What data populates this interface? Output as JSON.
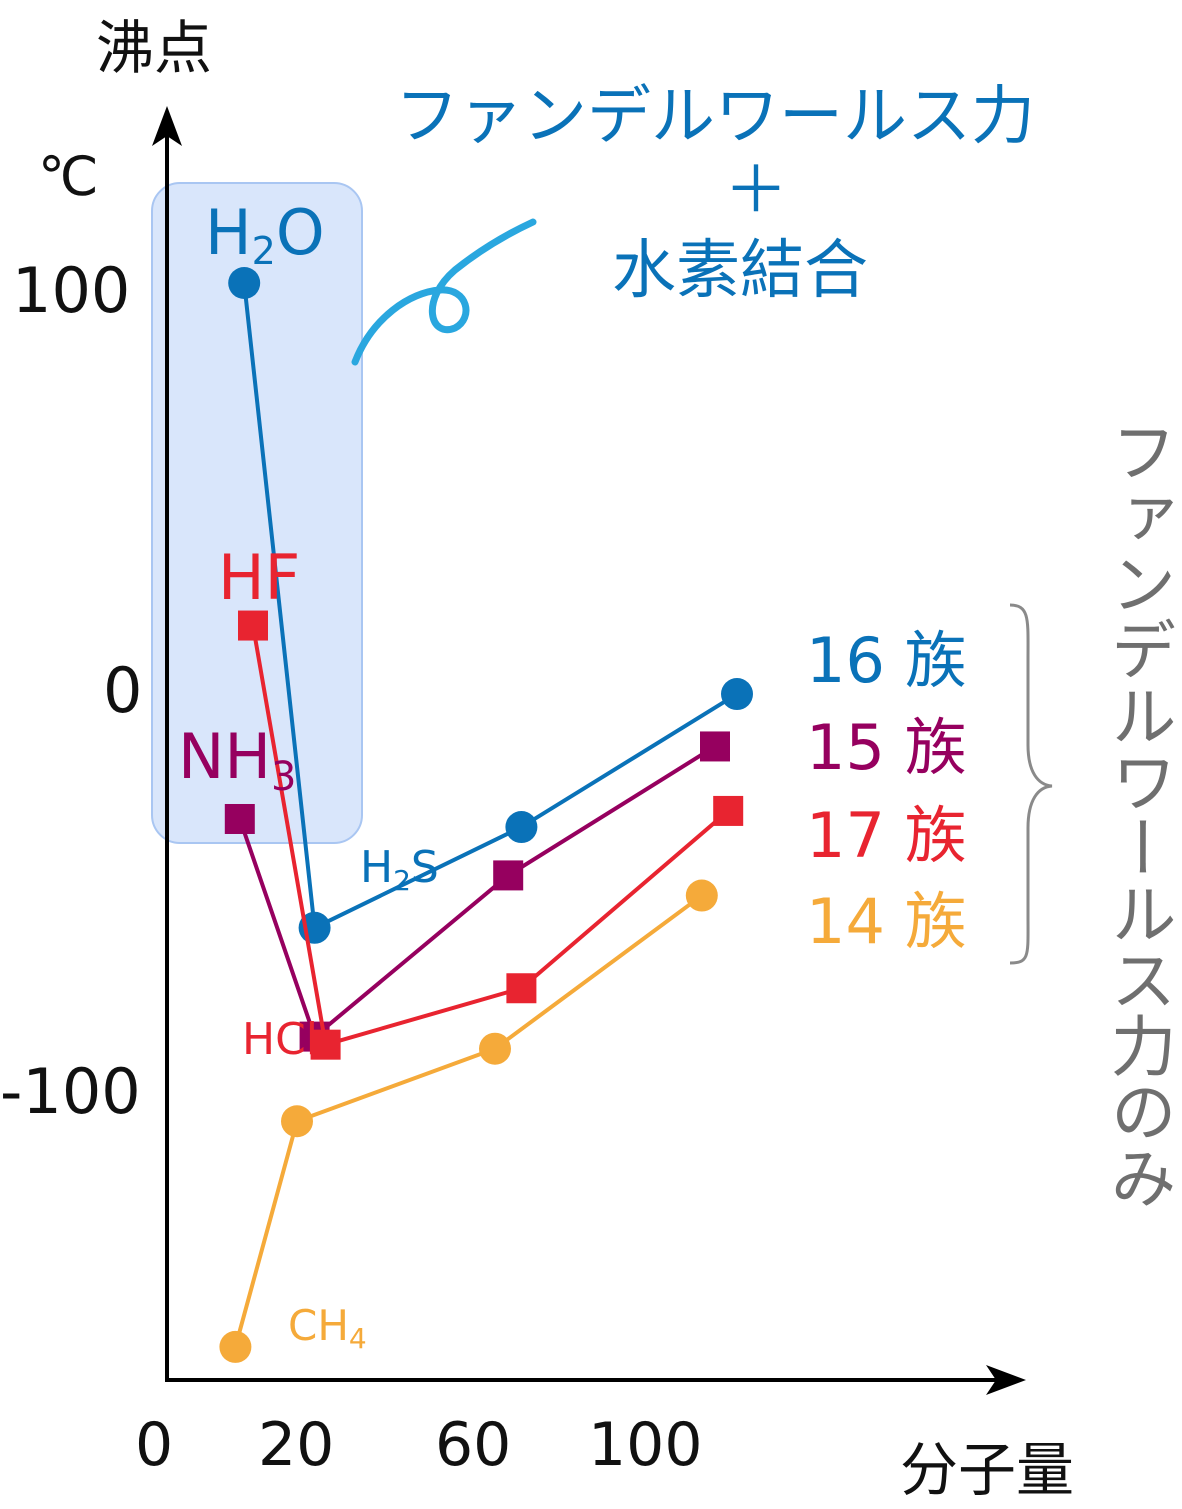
{
  "chart_data": {
    "type": "line",
    "title": "",
    "ylabel": "沸点",
    "yunit": "℃",
    "xlabel": "分子量",
    "xlim": [
      0,
      160
    ],
    "ylim": [
      -180,
      150
    ],
    "x_ticks": [
      "0",
      "20",
      "60",
      "100"
    ],
    "y_ticks": [
      "100",
      "0",
      "-100"
    ],
    "series": [
      {
        "name": "16 族",
        "color": "#0a72b8",
        "marker": "circle",
        "points": [
          {
            "x": 18,
            "y": 100,
            "label": "H2O"
          },
          {
            "x": 34,
            "y": -60,
            "label": "H2S"
          },
          {
            "x": 81,
            "y": -35,
            "label": ""
          },
          {
            "x": 130,
            "y": -2,
            "label": ""
          }
        ]
      },
      {
        "name": "15 族",
        "color": "#96005f",
        "marker": "square",
        "points": [
          {
            "x": 17,
            "y": -33,
            "label": "NH3"
          },
          {
            "x": 34,
            "y": -87,
            "label": ""
          },
          {
            "x": 78,
            "y": -47,
            "label": ""
          },
          {
            "x": 125,
            "y": -15,
            "label": ""
          }
        ]
      },
      {
        "name": "17 族",
        "color": "#e82430",
        "marker": "square",
        "points": [
          {
            "x": 20,
            "y": 15,
            "label": "HF"
          },
          {
            "x": 36.5,
            "y": -89,
            "label": "HCl"
          },
          {
            "x": 81,
            "y": -75,
            "label": ""
          },
          {
            "x": 128,
            "y": -31,
            "label": ""
          }
        ]
      },
      {
        "name": "14 族",
        "color": "#f5aa3a",
        "marker": "circle",
        "points": [
          {
            "x": 16,
            "y": -164,
            "label": "CH4"
          },
          {
            "x": 30,
            "y": -108,
            "label": ""
          },
          {
            "x": 75,
            "y": -90,
            "label": ""
          },
          {
            "x": 122,
            "y": -52,
            "label": ""
          }
        ]
      }
    ],
    "annotations": {
      "hbond_text_line1": "ファンデルワールス力",
      "hbond_text_line2": "＋",
      "hbond_text_line3": "水素結合",
      "hbond_color": "#0a72b8",
      "vdw_only_text": "ファンデルワールス力のみ",
      "vdw_color": "#6f6f6f",
      "highlight_fill": "#d9e6fb",
      "highlight_stroke": "#a9c6f2",
      "swirl_color": "#2aa7df"
    }
  }
}
